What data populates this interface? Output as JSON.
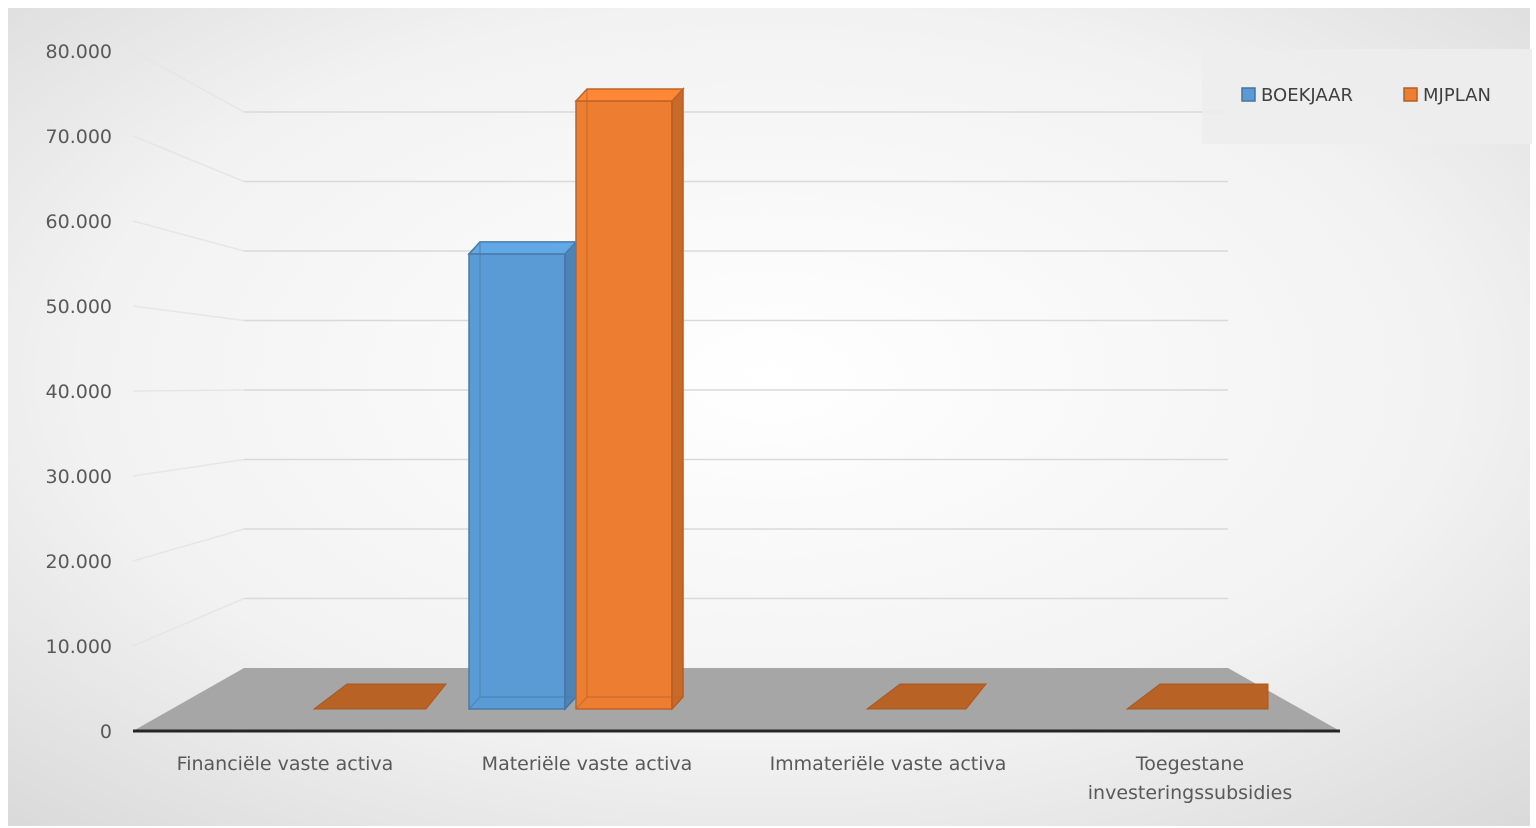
{
  "chart_data": {
    "type": "bar",
    "categories": [
      "Financiële vaste activa",
      "Materiële vaste activa",
      "Immateriële vaste activa",
      "Toegestane investeringssubsidies"
    ],
    "series": [
      {
        "name": "BOEKJAAR",
        "values": [
          0,
          56500,
          0,
          0
        ],
        "color": "#5b9bd5"
      },
      {
        "name": "MJPLAN",
        "values": [
          0,
          75000,
          0,
          0
        ],
        "color": "#ed7d31"
      }
    ],
    "yticks": [
      "0",
      "10.000",
      "20.000",
      "30.000",
      "40.000",
      "50.000",
      "60.000",
      "70.000",
      "80.000"
    ],
    "ylim": [
      0,
      80000
    ],
    "grid": true,
    "legend_position": "top-right",
    "title": "",
    "xlabel": "",
    "ylabel": ""
  }
}
